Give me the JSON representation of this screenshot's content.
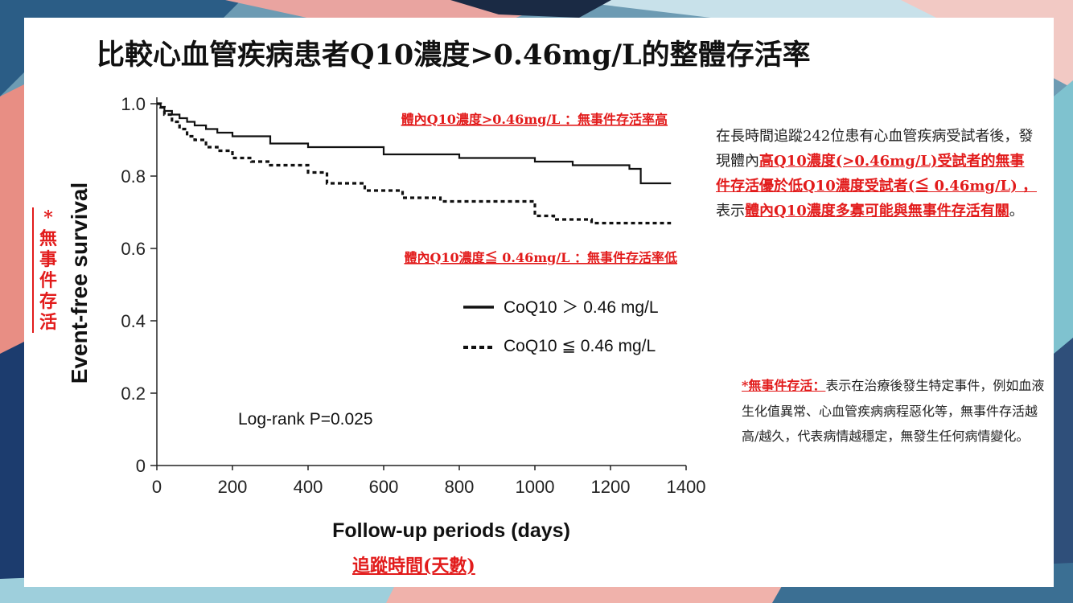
{
  "title": "比較心血管疾病患者Q10濃度>0.46mg/L的整體存活率",
  "chart_data": {
    "type": "line",
    "xlabel": "Follow-up periods (days)",
    "ylabel": "Event-free survival",
    "xlim": [
      0,
      1400
    ],
    "ylim": [
      0,
      1.0
    ],
    "xticks": [
      "0",
      "200",
      "400",
      "600",
      "800",
      "1000",
      "1200",
      "1400"
    ],
    "yticks": [
      "0",
      "0.2",
      "0.4",
      "0.6",
      "0.8",
      "1.0"
    ],
    "series": [
      {
        "name": "CoQ10 ＞ 0.46 mg/L",
        "style": "solid",
        "x": [
          0,
          10,
          20,
          40,
          60,
          80,
          100,
          130,
          160,
          200,
          300,
          400,
          600,
          800,
          1000,
          1100,
          1250,
          1280,
          1360
        ],
        "y": [
          1.0,
          0.99,
          0.98,
          0.97,
          0.96,
          0.95,
          0.94,
          0.93,
          0.92,
          0.91,
          0.89,
          0.88,
          0.86,
          0.85,
          0.84,
          0.83,
          0.82,
          0.78,
          0.78
        ]
      },
      {
        "name": "CoQ10 ≦ 0.46 mg/L",
        "style": "dashed",
        "x": [
          0,
          10,
          20,
          40,
          60,
          80,
          100,
          130,
          160,
          200,
          250,
          300,
          400,
          450,
          550,
          650,
          750,
          1000,
          1050,
          1150,
          1360
        ],
        "y": [
          1.0,
          0.99,
          0.97,
          0.95,
          0.93,
          0.91,
          0.9,
          0.88,
          0.87,
          0.85,
          0.84,
          0.83,
          0.81,
          0.78,
          0.76,
          0.74,
          0.73,
          0.69,
          0.68,
          0.67,
          0.67
        ]
      }
    ],
    "annotations": {
      "high": "體內Q10濃度>0.46mg/L ：無事件存活率高",
      "low": "體內Q10濃度≦ 0.46mg/L ：無事件存活率低",
      "pvalue": "Log-rank P=0.025"
    }
  },
  "ylabel_zh": [
    "*",
    "無",
    "事",
    "件",
    "存",
    "活"
  ],
  "xlabel_zh": "追蹤時間(天數)",
  "description": {
    "p1": "在長時間追蹤242位患有心血管疾病受試者後，發現體內",
    "r1": "高Q10濃度(>0.46mg/L)受試者的無事件存活優於低Q10濃度受試者(≦ 0.46mg/L) ，",
    "p2": "表示",
    "r2": "體內Q10濃度多寡可能與無事件存活有關",
    "p3": "。"
  },
  "note": {
    "label": "*無事件存活：",
    "text": "表示在治療後發生特定事件，例如血液生化值異常、心血管疾病病程惡化等，無事件存活越高/越久，代表病情越穩定，無發生任何病情變化。"
  },
  "colors": {
    "accent": "#e21b1b",
    "line": "#111111"
  }
}
